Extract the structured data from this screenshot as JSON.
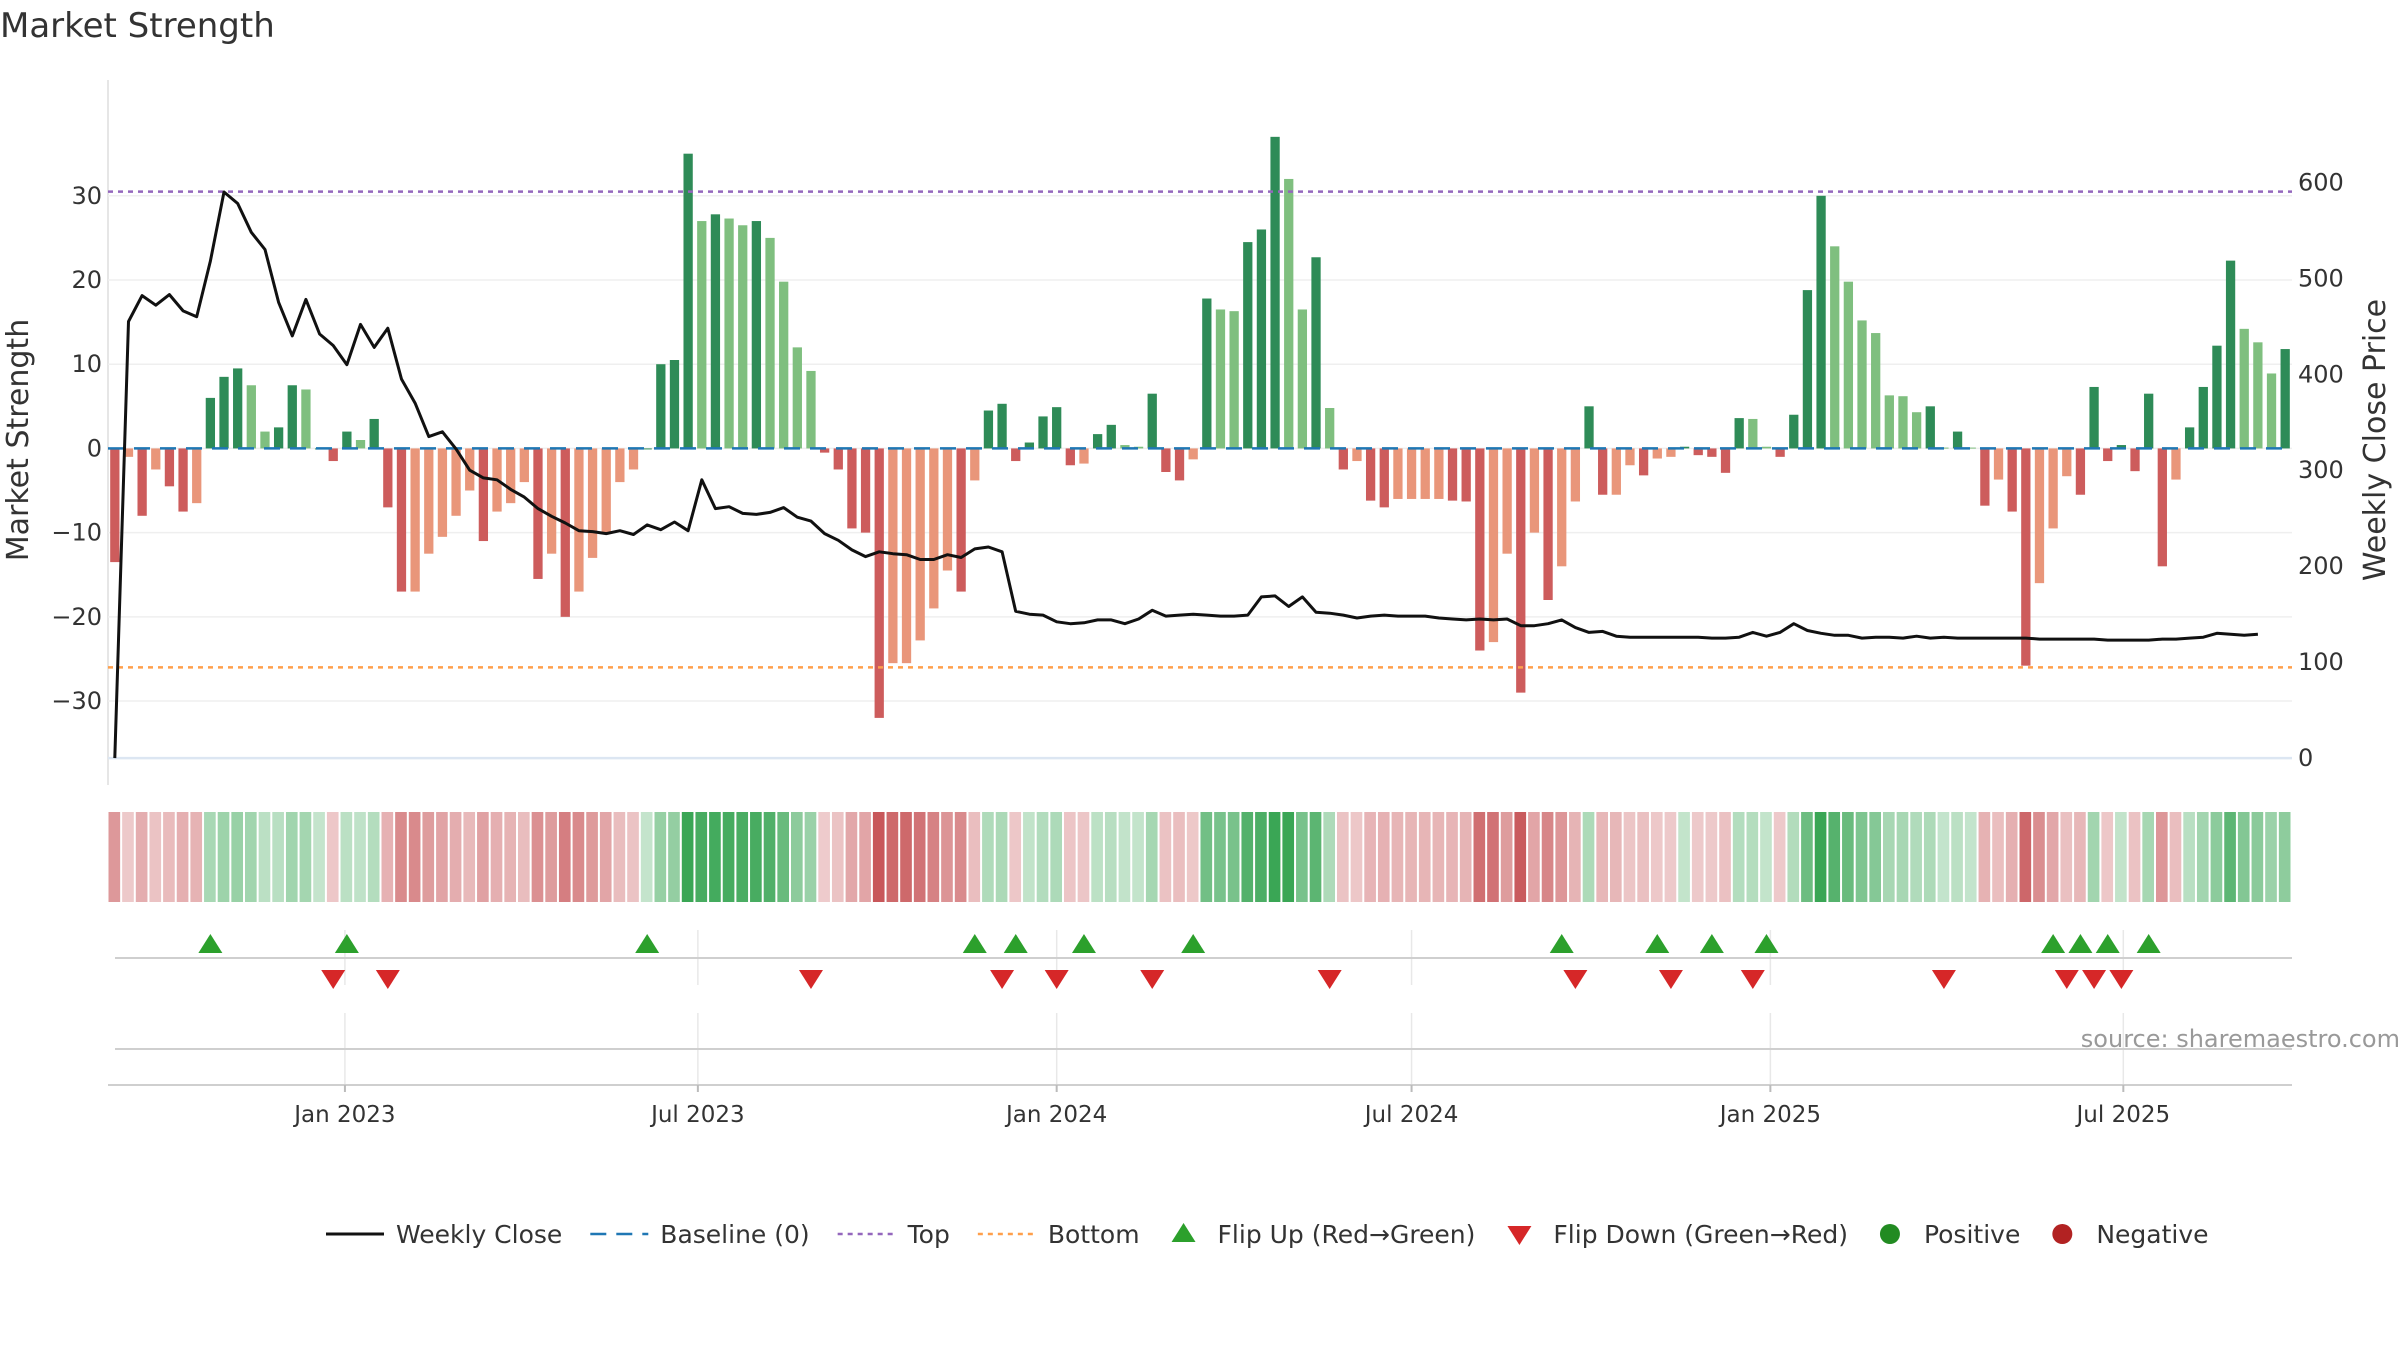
{
  "title": "Market Strength",
  "source": "source: sharemaestro.com",
  "colors": {
    "pos_strong": "#2e8b57",
    "pos_weak": "#7fbf7f",
    "neg_strong": "#cd5c5c",
    "neg_weak": "#e9967a",
    "close_line": "#111111",
    "baseline": "#1f77b4",
    "top": "#9467bd",
    "bottom": "#ff9f4a",
    "flip_up": "#2ca02c",
    "flip_down": "#d62728",
    "positive": "#228b22",
    "negative": "#b22222"
  },
  "chart_data": {
    "type": "bar",
    "title": "Market Strength",
    "ylabel": "Market Strength",
    "y2label": "Weekly Close Price",
    "ylim": [
      -37,
      39
    ],
    "y2lim": [
      -2,
      665
    ],
    "yticks": [
      "30",
      "20",
      "10",
      "0",
      "−10",
      "−20",
      "−30"
    ],
    "y2ticks": [
      "600",
      "500",
      "400",
      "300",
      "200",
      "100",
      "0"
    ],
    "xtick_labels": [
      "Jan 2023",
      "Jul 2023",
      "Jan 2024",
      "Jul 2024",
      "Jan 2025",
      "Jul 2025"
    ],
    "xtick_dates": [
      "2023-01-01",
      "2023-07-01",
      "2024-01-01",
      "2024-07-01",
      "2025-01-01",
      "2025-07-01"
    ],
    "first_week": "2022-09-05",
    "top_level": 30.5,
    "bottom_level": -26,
    "grid": true,
    "legend_position": "bottom-center",
    "legend": [
      {
        "label": "Weekly Close",
        "kind": "line"
      },
      {
        "label": "Baseline (0)",
        "kind": "dash"
      },
      {
        "label": "Top",
        "kind": "dot-top"
      },
      {
        "label": "Bottom",
        "kind": "dot-bottom"
      },
      {
        "label": "Flip Up (Red→Green)",
        "kind": "tri-up"
      },
      {
        "label": "Flip Down (Green→Red)",
        "kind": "tri-down"
      },
      {
        "label": "Positive",
        "kind": "dot-pos"
      },
      {
        "label": "Negative",
        "kind": "dot-neg"
      }
    ],
    "strength": [
      -13.5,
      -1,
      -8,
      -2.5,
      -4.5,
      -7.5,
      -6.5,
      6,
      8.5,
      9.5,
      7.5,
      2,
      2.5,
      7.5,
      7,
      0,
      -1.5,
      2,
      1,
      3.5,
      -7,
      -17,
      -17,
      -12.5,
      -10.5,
      -8,
      -5,
      -11,
      -7.5,
      -6.5,
      -4,
      -15.5,
      -12.5,
      -20,
      -17,
      -13,
      -10,
      -4,
      -2.5,
      0,
      10,
      10.5,
      35,
      27,
      27.8,
      27.3,
      26.5,
      27,
      25,
      19.8,
      12,
      9.2,
      -0.5,
      -2.5,
      -9.5,
      -10,
      -32,
      -25.5,
      -25.5,
      -22.8,
      -19,
      -14.5,
      -17,
      -3.8,
      4.5,
      5.3,
      -1.5,
      0.7,
      3.8,
      4.9,
      -2,
      -1.8,
      1.7,
      2.8,
      0.4,
      0.2,
      6.5,
      -2.8,
      -3.8,
      -1.3,
      17.8,
      16.5,
      16.3,
      24.5,
      26,
      37,
      32,
      16.5,
      22.7,
      4.8,
      -2.5,
      -1.5,
      -6.2,
      -7,
      -6,
      -6,
      -6,
      -6,
      -6.2,
      -6.3,
      -24,
      -23,
      -12.5,
      -29,
      -10,
      -18,
      -14,
      -6.3,
      5,
      -5.5,
      -5.5,
      -2,
      -3.2,
      -1.2,
      -1,
      0.2,
      -0.8,
      -1,
      -2.9,
      3.6,
      3.5,
      0.2,
      -1,
      4,
      18.8,
      30,
      24,
      19.8,
      15.2,
      13.7,
      6.3,
      6.2,
      4.3,
      5,
      0.1,
      2,
      0.1,
      -6.8,
      -3.7,
      -7.5,
      -25.8,
      -16,
      -9.5,
      -3.3,
      -5.5,
      7.3,
      -1.5,
      0.4,
      -2.7,
      6.5,
      -14,
      -3.7,
      2.5,
      7.3,
      12.2,
      22.3,
      14.2,
      12.6,
      8.9,
      11.8
    ],
    "close": [
      0,
      455,
      482,
      472,
      483,
      466,
      460,
      518,
      590,
      578,
      548,
      530,
      475,
      440,
      478,
      442,
      430,
      410,
      452,
      428,
      448,
      395,
      370,
      335,
      340,
      322,
      300,
      292,
      290,
      280,
      272,
      260,
      252,
      245,
      237,
      236,
      234,
      237,
      233,
      243,
      238,
      246,
      237,
      290,
      260,
      262,
      255,
      254,
      256,
      261,
      251,
      247,
      234,
      227,
      217,
      210,
      215,
      213,
      212,
      207,
      207,
      212,
      209,
      218,
      220,
      215,
      153,
      150,
      149,
      142,
      140,
      141,
      144,
      144,
      140,
      145,
      154,
      148,
      149,
      150,
      149,
      148,
      148,
      149,
      168,
      169,
      158,
      168,
      152,
      151,
      149,
      146,
      148,
      149,
      148,
      148,
      148,
      146,
      145,
      144,
      145,
      144,
      145,
      138,
      138,
      140,
      144,
      136,
      131,
      132,
      127,
      126,
      126,
      126,
      126,
      126,
      126,
      125,
      125,
      126,
      131,
      127,
      131,
      140,
      133,
      130,
      128,
      128,
      125,
      126,
      126,
      125,
      127,
      125,
      126,
      125,
      125,
      125,
      125,
      125,
      125,
      124,
      124,
      124,
      124,
      124,
      123,
      123,
      123,
      123,
      124,
      124,
      125,
      126,
      130,
      129,
      128,
      129
    ],
    "flip_up_weeks": [
      7,
      17,
      39,
      63,
      66,
      71,
      79,
      106,
      113,
      117,
      121,
      142,
      144,
      146,
      149
    ],
    "flip_down_weeks": [
      16,
      20,
      51,
      65,
      69,
      76,
      89,
      107,
      114,
      120,
      134,
      143,
      145,
      147
    ]
  }
}
